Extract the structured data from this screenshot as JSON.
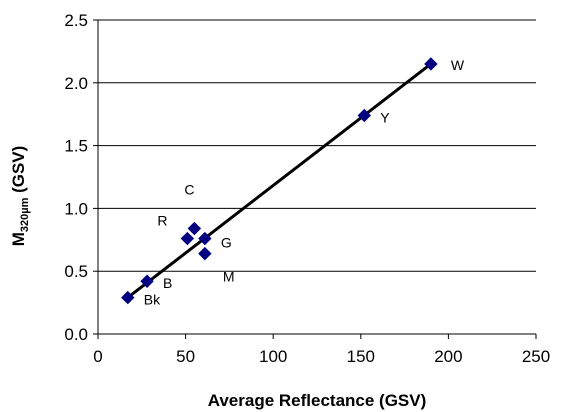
{
  "chart_data": {
    "type": "scatter",
    "xlabel": "Average Reflectance (GSV)",
    "ylabel_main": "M",
    "ylabel_sub": "320µm",
    "ylabel_unit": " (GSV)",
    "xlim": [
      0,
      250
    ],
    "ylim": [
      0,
      2.5
    ],
    "xticks": [
      "0",
      "50",
      "100",
      "150",
      "200",
      "250"
    ],
    "xtick_values": [
      0,
      50,
      100,
      150,
      200,
      250
    ],
    "yticks": [
      "0.0",
      "0.5",
      "1.0",
      "1.5",
      "2.0",
      "2.5"
    ],
    "ytick_values": [
      0,
      0.5,
      1.0,
      1.5,
      2.0,
      2.5
    ],
    "grid": "horizontal",
    "marker": "diamond",
    "marker_color": "#000080",
    "points": [
      {
        "label": "Bk",
        "x": 17,
        "y": 0.29
      },
      {
        "label": "B",
        "x": 28,
        "y": 0.42
      },
      {
        "label": "R",
        "x": 51,
        "y": 0.76
      },
      {
        "label": "C",
        "x": 55,
        "y": 0.84
      },
      {
        "label": "G",
        "x": 61,
        "y": 0.76
      },
      {
        "label": "M",
        "x": 61,
        "y": 0.64
      },
      {
        "label": "Y",
        "x": 152,
        "y": 1.74
      },
      {
        "label": "W",
        "x": 190,
        "y": 2.15
      }
    ],
    "trendline": {
      "x_start": 17,
      "y_start": 0.29,
      "x_end": 190,
      "y_end": 2.15,
      "color": "#000000"
    }
  }
}
